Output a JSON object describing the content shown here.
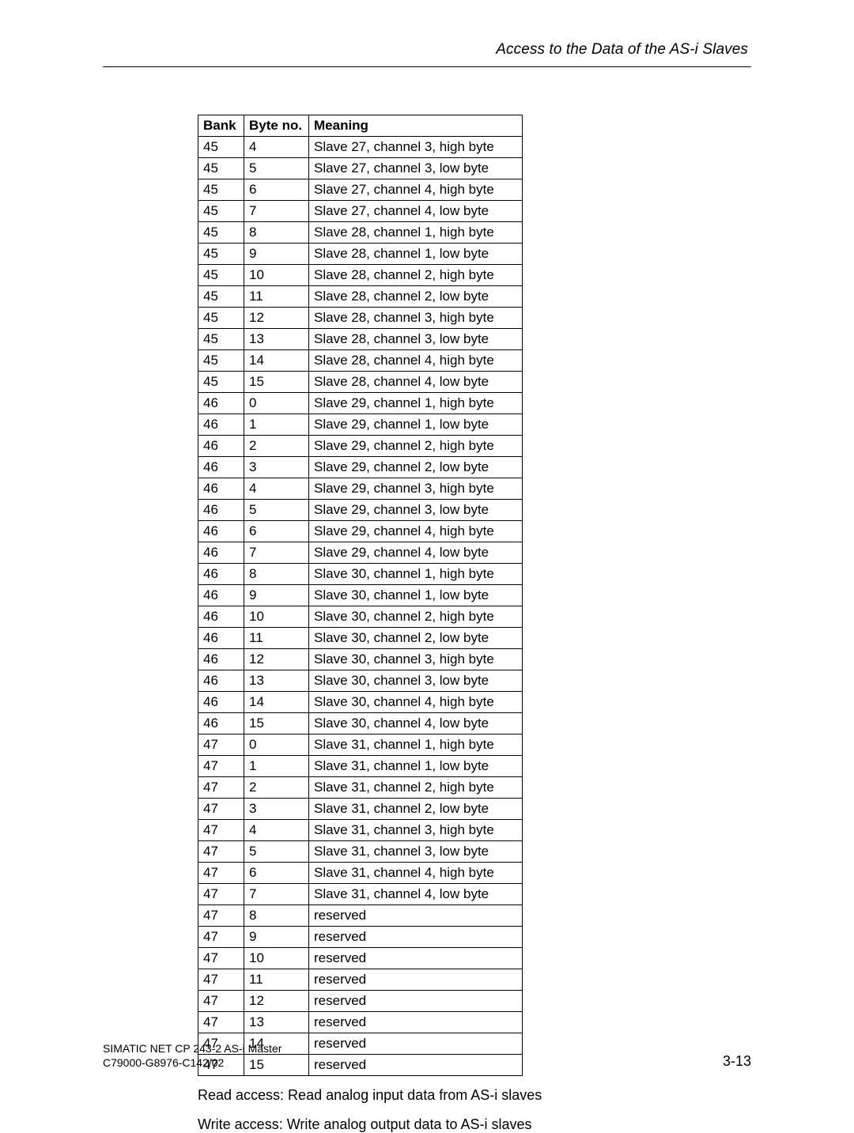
{
  "header": {
    "title": "Access to the Data of the AS-i Slaves"
  },
  "table": {
    "columns": [
      "Bank",
      "Byte no.",
      "Meaning"
    ],
    "rows": [
      [
        "45",
        "4",
        "Slave 27, channel 3, high byte"
      ],
      [
        "45",
        "5",
        "Slave 27, channel 3, low byte"
      ],
      [
        "45",
        "6",
        "Slave 27, channel 4, high byte"
      ],
      [
        "45",
        "7",
        "Slave 27, channel 4, low byte"
      ],
      [
        "45",
        "8",
        "Slave 28, channel 1, high byte"
      ],
      [
        "45",
        "9",
        "Slave 28, channel 1, low byte"
      ],
      [
        "45",
        "10",
        "Slave 28, channel 2, high byte"
      ],
      [
        "45",
        "11",
        "Slave 28, channel 2, low byte"
      ],
      [
        "45",
        "12",
        "Slave 28, channel 3, high byte"
      ],
      [
        "45",
        "13",
        "Slave 28, channel 3, low byte"
      ],
      [
        "45",
        "14",
        "Slave 28, channel 4, high byte"
      ],
      [
        "45",
        "15",
        "Slave 28, channel 4, low byte"
      ],
      [
        "46",
        "0",
        "Slave 29, channel 1, high byte"
      ],
      [
        "46",
        "1",
        "Slave 29, channel 1, low byte"
      ],
      [
        "46",
        "2",
        "Slave 29, channel 2, high byte"
      ],
      [
        "46",
        "3",
        "Slave 29, channel 2, low byte"
      ],
      [
        "46",
        "4",
        "Slave 29, channel 3, high byte"
      ],
      [
        "46",
        "5",
        "Slave 29, channel 3, low byte"
      ],
      [
        "46",
        "6",
        "Slave 29, channel 4, high byte"
      ],
      [
        "46",
        "7",
        "Slave 29, channel 4, low byte"
      ],
      [
        "46",
        "8",
        "Slave 30, channel 1, high byte"
      ],
      [
        "46",
        "9",
        "Slave 30, channel 1, low byte"
      ],
      [
        "46",
        "10",
        "Slave 30, channel 2, high byte"
      ],
      [
        "46",
        "11",
        "Slave 30, channel 2, low byte"
      ],
      [
        "46",
        "12",
        "Slave 30, channel 3, high byte"
      ],
      [
        "46",
        "13",
        "Slave 30, channel 3, low byte"
      ],
      [
        "46",
        "14",
        "Slave 30, channel 4, high byte"
      ],
      [
        "46",
        "15",
        "Slave 30, channel 4, low byte"
      ],
      [
        "47",
        "0",
        "Slave 31, channel 1, high byte"
      ],
      [
        "47",
        "1",
        "Slave 31, channel 1, low byte"
      ],
      [
        "47",
        "2",
        "Slave 31, channel 2, high byte"
      ],
      [
        "47",
        "3",
        "Slave 31, channel 2, low byte"
      ],
      [
        "47",
        "4",
        "Slave 31, channel 3, high byte"
      ],
      [
        "47",
        "5",
        "Slave 31, channel 3, low byte"
      ],
      [
        "47",
        "6",
        "Slave 31, channel 4, high byte"
      ],
      [
        "47",
        "7",
        "Slave 31, channel 4, low byte"
      ],
      [
        "47",
        "8",
        "reserved"
      ],
      [
        "47",
        "9",
        "reserved"
      ],
      [
        "47",
        "10",
        "reserved"
      ],
      [
        "47",
        "11",
        "reserved"
      ],
      [
        "47",
        "12",
        "reserved"
      ],
      [
        "47",
        "13",
        "reserved"
      ],
      [
        "47",
        "14",
        "reserved"
      ],
      [
        "47",
        "15",
        "reserved"
      ]
    ]
  },
  "paragraphs": {
    "read": "Read access: Read analog input data from AS-i slaves",
    "write": "Write access: Write analog output data to AS-i slaves"
  },
  "footer": {
    "line1": "SIMATIC NET CP 243-2 AS-i Master",
    "line2": "C79000-G8976-C142/02",
    "pagenum": "3-13"
  }
}
